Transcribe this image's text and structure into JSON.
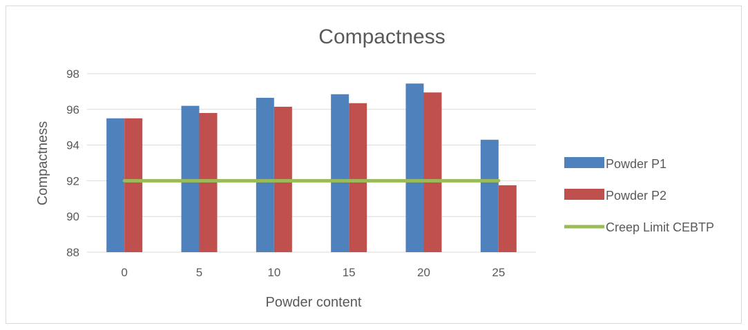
{
  "chart_data": {
    "type": "bar",
    "title": "Compactness",
    "xlabel": "Powder content",
    "ylabel": "Compactness",
    "categories": [
      "0",
      "5",
      "10",
      "15",
      "20",
      "25"
    ],
    "ylim": [
      88,
      98
    ],
    "yticks": [
      "88",
      "90",
      "92",
      "94",
      "96",
      "98"
    ],
    "grid": true,
    "legend_position": "right",
    "series": [
      {
        "name": "Powder P1",
        "kind": "bar",
        "color": "#4f81bd",
        "values": [
          95.5,
          96.2,
          96.65,
          96.85,
          97.45,
          94.3
        ]
      },
      {
        "name": "Powder P2",
        "kind": "bar",
        "color": "#c0504d",
        "values": [
          95.5,
          95.8,
          96.15,
          96.35,
          96.95,
          91.75
        ]
      },
      {
        "name": "Creep Limit  CEBTP",
        "kind": "line",
        "color": "#9bbb59",
        "values": [
          92,
          92,
          92,
          92,
          92,
          92
        ]
      }
    ]
  }
}
